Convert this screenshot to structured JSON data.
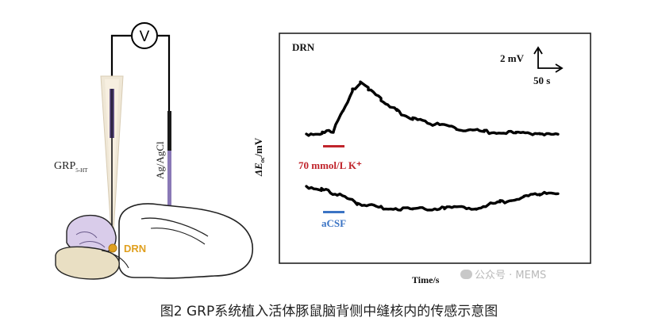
{
  "figure": {
    "voltmeter_symbol": "V",
    "electrode_grp_label_main": "GRP",
    "electrode_grp_label_sub": "5-HT",
    "electrode_ref_label": "Ag/AgCl",
    "brain_region_label": "DRN",
    "colors": {
      "drn": "#e0a020",
      "brain_front": "#d9ccea",
      "brain_base": "#e9dfc3",
      "k_bar": "#c0242b",
      "acsf_bar": "#3b74c4"
    }
  },
  "panel": {
    "region": "DRN",
    "y_axis_label_delta": "ΔE",
    "y_axis_label_sub": "oc",
    "y_axis_label_unit": "/mV",
    "x_axis_label": "Time/s",
    "scale_v": "2 mV",
    "scale_t": "50 s",
    "stim_k": "70 mmol/L K⁺",
    "stim_acsf": "aCSF"
  },
  "caption": "图2 GRP系统植入活体豚鼠脑背侧中缝核内的传感示意图",
  "watermark": "公众号 · MEMS",
  "icons": {
    "watermark": "wechat-icon"
  }
}
